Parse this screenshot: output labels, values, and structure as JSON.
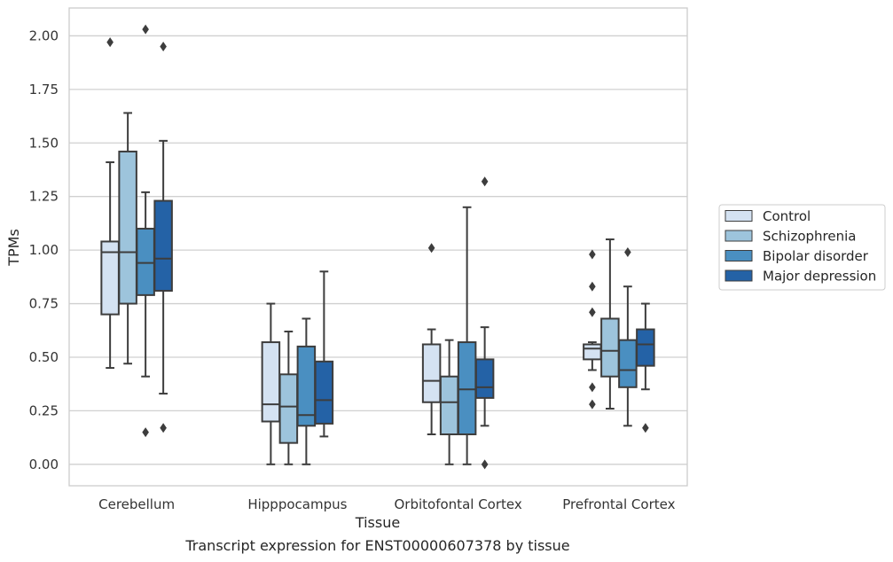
{
  "caption": "Transcript expression for ENST00000607378 by tissue",
  "chart_data": {
    "type": "box",
    "xlabel": "Tissue",
    "ylabel": "TPMs",
    "ylim": [
      -0.1,
      2.13
    ],
    "yticks": [
      "0.00",
      "0.25",
      "0.50",
      "0.75",
      "1.00",
      "1.25",
      "1.50",
      "1.75",
      "2.00"
    ],
    "grid": "horizontal",
    "legend_position": "right",
    "categories": [
      "Cerebellum",
      "Hipppocampus",
      "Orbitofontal Cortex",
      "Prefrontal Cortex"
    ],
    "series": [
      {
        "name": "Control",
        "color": "#d4e2f2",
        "boxes": [
          {
            "whisker_low": 0.45,
            "q1": 0.7,
            "median": 0.99,
            "q3": 1.04,
            "whisker_high": 1.41,
            "outliers": [
              1.97
            ]
          },
          {
            "whisker_low": 0.0,
            "q1": 0.2,
            "median": 0.28,
            "q3": 0.57,
            "whisker_high": 0.75,
            "outliers": []
          },
          {
            "whisker_low": 0.14,
            "q1": 0.29,
            "median": 0.39,
            "q3": 0.56,
            "whisker_high": 0.63,
            "outliers": [
              1.01
            ]
          },
          {
            "whisker_low": 0.44,
            "q1": 0.49,
            "median": 0.54,
            "q3": 0.56,
            "whisker_high": 0.57,
            "outliers": [
              0.98,
              0.83,
              0.71,
              0.36,
              0.28
            ]
          }
        ]
      },
      {
        "name": "Schizophrenia",
        "color": "#9dc4dc",
        "boxes": [
          {
            "whisker_low": 0.47,
            "q1": 0.75,
            "median": 0.99,
            "q3": 1.46,
            "whisker_high": 1.64,
            "outliers": []
          },
          {
            "whisker_low": 0.0,
            "q1": 0.1,
            "median": 0.27,
            "q3": 0.42,
            "whisker_high": 0.62,
            "outliers": []
          },
          {
            "whisker_low": 0.0,
            "q1": 0.14,
            "median": 0.29,
            "q3": 0.41,
            "whisker_high": 0.58,
            "outliers": []
          },
          {
            "whisker_low": 0.26,
            "q1": 0.41,
            "median": 0.53,
            "q3": 0.68,
            "whisker_high": 1.05,
            "outliers": []
          }
        ]
      },
      {
        "name": "Bipolar disorder",
        "color": "#4a8fc1",
        "boxes": [
          {
            "whisker_low": 0.41,
            "q1": 0.79,
            "median": 0.94,
            "q3": 1.1,
            "whisker_high": 1.27,
            "outliers": [
              2.03,
              0.15
            ]
          },
          {
            "whisker_low": 0.0,
            "q1": 0.18,
            "median": 0.23,
            "q3": 0.55,
            "whisker_high": 0.68,
            "outliers": []
          },
          {
            "whisker_low": 0.0,
            "q1": 0.14,
            "median": 0.35,
            "q3": 0.57,
            "whisker_high": 1.2,
            "outliers": []
          },
          {
            "whisker_low": 0.18,
            "q1": 0.36,
            "median": 0.44,
            "q3": 0.58,
            "whisker_high": 0.83,
            "outliers": [
              0.99
            ]
          }
        ]
      },
      {
        "name": "Major depression",
        "color": "#2462a6",
        "boxes": [
          {
            "whisker_low": 0.33,
            "q1": 0.81,
            "median": 0.96,
            "q3": 1.23,
            "whisker_high": 1.51,
            "outliers": [
              1.95,
              0.17
            ]
          },
          {
            "whisker_low": 0.13,
            "q1": 0.19,
            "median": 0.3,
            "q3": 0.48,
            "whisker_high": 0.9,
            "outliers": []
          },
          {
            "whisker_low": 0.18,
            "q1": 0.31,
            "median": 0.36,
            "q3": 0.49,
            "whisker_high": 0.64,
            "outliers": [
              1.32,
              0.0
            ]
          },
          {
            "whisker_low": 0.35,
            "q1": 0.46,
            "median": 0.56,
            "q3": 0.63,
            "whisker_high": 0.75,
            "outliers": [
              0.17
            ]
          }
        ]
      }
    ]
  }
}
